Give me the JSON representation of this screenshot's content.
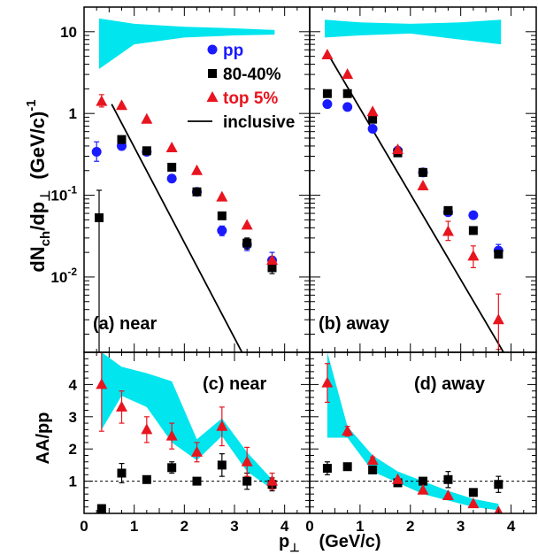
{
  "figure": {
    "y_axis_label_top": "dN_ch/dp_⊥ (GeV/c)^-1",
    "y_axis_label_top_parts": {
      "main": "dN",
      "sub1": "ch",
      "mid": "/dp",
      "sub2": "⊥",
      "unit": "(GeV/c)",
      "sup": "-1"
    },
    "y_axis_label_bottom": "AA/pp",
    "x_axis_label": "p⊥ (GeV/c)",
    "x_axis_label_parts": {
      "main": "p",
      "sub": "⊥",
      "unit": "(GeV/c)"
    },
    "legend": [
      {
        "label": "pp",
        "marker": "circle",
        "color": "#1a1aff"
      },
      {
        "label": "80-40%",
        "marker": "square",
        "color": "#000000"
      },
      {
        "label": "top 5%",
        "marker": "triangle",
        "color": "#e8141e"
      },
      {
        "label": "inclusive",
        "marker": "line",
        "color": "#000000"
      }
    ],
    "colors": {
      "band": "#00e5ee",
      "pp": "#1a1aff",
      "mid": "#000000",
      "top": "#e8141e"
    }
  },
  "chart_data": [
    {
      "id": "a-near",
      "type": "scatter",
      "panel_label": "(a) near",
      "xlim": [
        0,
        4.5
      ],
      "ylim": [
        0.0012,
        20
      ],
      "yscale": "log",
      "x_ticks": [
        0,
        1,
        2,
        3,
        4
      ],
      "y_tick_labels": [
        {
          "value": 10,
          "label": "10"
        },
        {
          "value": 1,
          "label": "1"
        },
        {
          "value": 0.1,
          "label": "10^-1",
          "base": "10",
          "exp": "-1"
        },
        {
          "value": 0.01,
          "label": "10^-2",
          "base": "10",
          "exp": "-2"
        }
      ],
      "band": {
        "x": [
          0.3,
          1.0,
          2.0,
          3.0,
          3.8
        ],
        "upper": [
          14.5,
          12.5,
          11.5,
          11.0,
          10.5
        ],
        "lower": [
          3.5,
          7.0,
          8.5,
          9.0,
          9.2
        ]
      },
      "inclusive_line": {
        "x": [
          0.55,
          3.15
        ],
        "y": [
          1.3,
          0.0012
        ]
      },
      "series": [
        {
          "name": "pp",
          "marker": "circle",
          "color": "#1a1aff",
          "points": [
            {
              "x": 0.25,
              "y": 0.34,
              "yerr": [
                0.26,
                0.45
              ]
            },
            {
              "x": 0.75,
              "y": 0.4,
              "yerr": [
                0.36,
                0.44
              ]
            },
            {
              "x": 1.25,
              "y": 0.34
            },
            {
              "x": 1.75,
              "y": 0.16
            },
            {
              "x": 2.25,
              "y": 0.11
            },
            {
              "x": 2.75,
              "y": 0.037,
              "yerr": [
                0.032,
                0.042
              ]
            },
            {
              "x": 3.25,
              "y": 0.025,
              "yerr": [
                0.021,
                0.029
              ]
            },
            {
              "x": 3.75,
              "y": 0.016,
              "yerr": [
                0.013,
                0.02
              ]
            }
          ]
        },
        {
          "name": "80-40%",
          "marker": "square",
          "color": "#000000",
          "points": [
            {
              "x": 0.3,
              "y": 0.053,
              "yerr": [
                0.0012,
                0.115
              ]
            },
            {
              "x": 0.75,
              "y": 0.48
            },
            {
              "x": 1.25,
              "y": 0.35
            },
            {
              "x": 1.75,
              "y": 0.22
            },
            {
              "x": 2.25,
              "y": 0.11
            },
            {
              "x": 2.75,
              "y": 0.056
            },
            {
              "x": 3.25,
              "y": 0.026,
              "yerr": [
                0.022,
                0.03
              ]
            },
            {
              "x": 3.75,
              "y": 0.013,
              "yerr": [
                0.011,
                0.015
              ]
            }
          ]
        },
        {
          "name": "top 5%",
          "marker": "triangle",
          "color": "#e8141e",
          "points": [
            {
              "x": 0.35,
              "y": 1.4,
              "yerr": [
                1.2,
                1.7
              ]
            },
            {
              "x": 0.75,
              "y": 1.25
            },
            {
              "x": 1.25,
              "y": 0.85
            },
            {
              "x": 1.75,
              "y": 0.38
            },
            {
              "x": 2.25,
              "y": 0.2
            },
            {
              "x": 2.75,
              "y": 0.095
            },
            {
              "x": 3.25,
              "y": 0.043
            },
            {
              "x": 3.75,
              "y": 0.016
            }
          ]
        }
      ]
    },
    {
      "id": "b-away",
      "type": "scatter",
      "panel_label": "(b) away",
      "xlim": [
        0,
        4.5
      ],
      "ylim": [
        0.0012,
        20
      ],
      "yscale": "log",
      "x_ticks": [
        0,
        1,
        2,
        3,
        4
      ],
      "band": {
        "x": [
          0.3,
          1.0,
          2.0,
          3.0,
          3.8
        ],
        "upper": [
          14.0,
          13.0,
          12.5,
          13.0,
          14.0
        ],
        "lower": [
          8.5,
          9.0,
          9.5,
          8.0,
          7.0
        ]
      },
      "inclusive_line": {
        "x": [
          0.35,
          3.85
        ],
        "y": [
          5.5,
          0.0012
        ]
      },
      "series": [
        {
          "name": "pp",
          "marker": "circle",
          "color": "#1a1aff",
          "points": [
            {
              "x": 0.35,
              "y": 1.3
            },
            {
              "x": 0.75,
              "y": 1.2
            },
            {
              "x": 1.25,
              "y": 0.65
            },
            {
              "x": 1.75,
              "y": 0.35
            },
            {
              "x": 2.25,
              "y": 0.19
            },
            {
              "x": 2.75,
              "y": 0.062
            },
            {
              "x": 3.25,
              "y": 0.057
            },
            {
              "x": 3.75,
              "y": 0.021,
              "yerr": [
                0.018,
                0.025
              ]
            }
          ]
        },
        {
          "name": "80-40%",
          "marker": "square",
          "color": "#000000",
          "points": [
            {
              "x": 0.35,
              "y": 1.75
            },
            {
              "x": 0.75,
              "y": 1.75
            },
            {
              "x": 1.25,
              "y": 0.85
            },
            {
              "x": 1.75,
              "y": 0.33
            },
            {
              "x": 2.25,
              "y": 0.19
            },
            {
              "x": 2.75,
              "y": 0.065
            },
            {
              "x": 3.25,
              "y": 0.037
            },
            {
              "x": 3.75,
              "y": 0.019
            }
          ]
        },
        {
          "name": "top 5%",
          "marker": "triangle",
          "color": "#e8141e",
          "points": [
            {
              "x": 0.35,
              "y": 5.2
            },
            {
              "x": 0.75,
              "y": 3.0
            },
            {
              "x": 1.25,
              "y": 1.05
            },
            {
              "x": 1.75,
              "y": 0.36
            },
            {
              "x": 2.25,
              "y": 0.13
            },
            {
              "x": 2.75,
              "y": 0.036,
              "yerr": [
                0.028,
                0.048
              ]
            },
            {
              "x": 3.25,
              "y": 0.018,
              "yerr": [
                0.013,
                0.024
              ]
            },
            {
              "x": 3.75,
              "y": 0.003,
              "yerr": [
                0.0013,
                0.0062
              ]
            }
          ]
        }
      ]
    },
    {
      "id": "c-near",
      "type": "scatter",
      "panel_label": "(c) near",
      "xlim": [
        0,
        4.5
      ],
      "ylim": [
        0,
        5
      ],
      "yscale": "linear",
      "x_ticks": [
        0,
        1,
        2,
        3,
        4
      ],
      "y_ticks": [
        1,
        2,
        3,
        4
      ],
      "reference_line": 1,
      "band": {
        "x": [
          0.35,
          0.75,
          1.25,
          1.75,
          2.25,
          2.75,
          3.25,
          3.75
        ],
        "upper": [
          5.0,
          4.55,
          4.35,
          4.1,
          2.3,
          2.95,
          1.9,
          1.05
        ],
        "lower": [
          2.6,
          3.65,
          3.3,
          2.2,
          1.65,
          2.4,
          1.3,
          0.75
        ]
      },
      "series": [
        {
          "name": "80-40%",
          "marker": "square",
          "color": "#000000",
          "points": [
            {
              "x": 0.35,
              "y": 0.15,
              "yerr": [
                0.05,
                0.25
              ]
            },
            {
              "x": 0.75,
              "y": 1.25,
              "yerr": [
                0.95,
                1.55
              ]
            },
            {
              "x": 1.25,
              "y": 1.05,
              "yerr": [
                0.95,
                1.15
              ]
            },
            {
              "x": 1.75,
              "y": 1.42,
              "yerr": [
                1.25,
                1.6
              ]
            },
            {
              "x": 2.25,
              "y": 1.0,
              "yerr": [
                0.9,
                1.1
              ]
            },
            {
              "x": 2.75,
              "y": 1.5,
              "yerr": [
                1.15,
                1.85
              ]
            },
            {
              "x": 3.25,
              "y": 1.0,
              "yerr": [
                0.75,
                1.25
              ]
            },
            {
              "x": 3.75,
              "y": 0.9,
              "yerr": [
                0.7,
                1.1
              ]
            }
          ]
        },
        {
          "name": "top 5%",
          "marker": "triangle",
          "color": "#e8141e",
          "points": [
            {
              "x": 0.35,
              "y": 4.0,
              "yerr": [
                2.55,
                5.0
              ]
            },
            {
              "x": 0.75,
              "y": 3.3,
              "yerr": [
                2.8,
                3.8
              ]
            },
            {
              "x": 1.25,
              "y": 2.6,
              "yerr": [
                2.2,
                3.0
              ]
            },
            {
              "x": 1.75,
              "y": 2.4,
              "yerr": [
                2.0,
                2.8
              ]
            },
            {
              "x": 2.25,
              "y": 1.9,
              "yerr": [
                1.6,
                2.2
              ]
            },
            {
              "x": 2.75,
              "y": 2.7,
              "yerr": [
                2.1,
                3.3
              ]
            },
            {
              "x": 3.25,
              "y": 1.6,
              "yerr": [
                1.15,
                2.05
              ]
            },
            {
              "x": 3.75,
              "y": 1.0,
              "yerr": [
                0.75,
                1.25
              ]
            }
          ]
        }
      ]
    },
    {
      "id": "d-away",
      "type": "scatter",
      "panel_label": "(d) away",
      "xlim": [
        0,
        4.5
      ],
      "ylim": [
        0,
        5
      ],
      "yscale": "linear",
      "x_ticks": [
        0,
        1,
        2,
        3,
        4
      ],
      "reference_line": 1,
      "band": {
        "x": [
          0.35,
          0.75,
          1.25,
          1.75,
          2.25,
          2.75,
          3.25,
          3.75
        ],
        "upper": [
          5.0,
          2.7,
          1.8,
          1.3,
          1.0,
          0.7,
          0.45,
          0.3
        ],
        "lower": [
          2.35,
          2.35,
          1.3,
          0.95,
          0.6,
          0.4,
          0.2,
          0.1
        ]
      },
      "series": [
        {
          "name": "80-40%",
          "marker": "square",
          "color": "#000000",
          "points": [
            {
              "x": 0.35,
              "y": 1.4,
              "yerr": [
                1.2,
                1.6
              ]
            },
            {
              "x": 0.75,
              "y": 1.45
            },
            {
              "x": 1.25,
              "y": 1.35
            },
            {
              "x": 1.75,
              "y": 0.95
            },
            {
              "x": 2.25,
              "y": 1.0
            },
            {
              "x": 2.75,
              "y": 1.05,
              "yerr": [
                0.8,
                1.3
              ]
            },
            {
              "x": 3.25,
              "y": 0.65
            },
            {
              "x": 3.75,
              "y": 0.9,
              "yerr": [
                0.65,
                1.15
              ]
            }
          ]
        },
        {
          "name": "top 5%",
          "marker": "triangle",
          "color": "#e8141e",
          "points": [
            {
              "x": 0.35,
              "y": 4.05,
              "yerr": [
                3.45,
                4.65
              ]
            },
            {
              "x": 0.75,
              "y": 2.55,
              "yerr": [
                2.4,
                2.7
              ]
            },
            {
              "x": 1.25,
              "y": 1.65,
              "yerr": [
                1.55,
                1.75
              ]
            },
            {
              "x": 1.75,
              "y": 1.05
            },
            {
              "x": 2.25,
              "y": 0.72
            },
            {
              "x": 2.75,
              "y": 0.55
            },
            {
              "x": 3.25,
              "y": 0.3
            },
            {
              "x": 3.75,
              "y": 0.05
            }
          ]
        }
      ]
    }
  ]
}
